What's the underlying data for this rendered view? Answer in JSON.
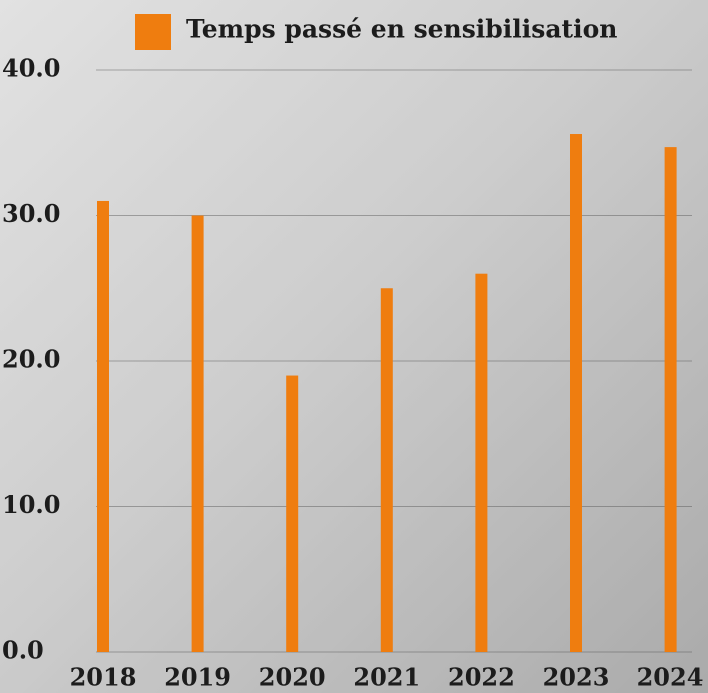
{
  "chart_data": {
    "type": "bar",
    "legend": "Temps passé en sensibilisation",
    "categories": [
      "2018",
      "2019",
      "2020",
      "2021",
      "2022",
      "2023",
      "2024"
    ],
    "values": [
      31.0,
      30.0,
      19.0,
      25.0,
      26.0,
      35.6,
      34.7
    ],
    "color": "#ef7d0f",
    "ylim": [
      0,
      40
    ],
    "yticks": [
      {
        "value": 0,
        "label": "0.0"
      },
      {
        "value": 10,
        "label": "10.0"
      },
      {
        "value": 20,
        "label": "20.0"
      },
      {
        "value": 30,
        "label": "30.0"
      },
      {
        "value": 40,
        "label": "40.0"
      }
    ],
    "grid": true
  }
}
